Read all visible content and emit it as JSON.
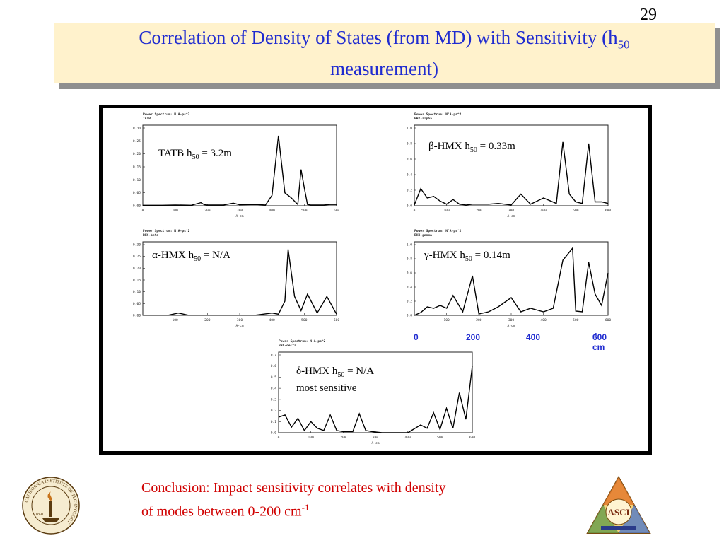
{
  "slide": {
    "page_number": "29",
    "title_line1_pre": "Correlation of Density of States (from MD) with Sensitivity (h",
    "title_line1_sub": "50",
    "title_line2": "measurement)"
  },
  "plots": [
    {
      "header1": "Power Spectrum: N'A-ps^2",
      "header2": "TATB",
      "ylabels": [
        "0.30",
        "0.25",
        "0.20",
        "0.15",
        "0.10",
        "0.05",
        "0.00"
      ],
      "xlabels": [
        "0",
        "100",
        "200",
        "300",
        "400",
        "500",
        "600"
      ],
      "xaxis": "A-cm"
    },
    {
      "header1": "Power Spectrum: N'A-ps^2",
      "header2": "BHX-alpha",
      "ylabels": [
        "1.0",
        "0.8",
        "0.6",
        "0.4",
        "0.2",
        "0.0"
      ],
      "xlabels": [
        "0",
        "100",
        "200",
        "300",
        "400",
        "500",
        "600"
      ],
      "xaxis": "A-cm"
    },
    {
      "header1": "Power Spectrum: N'A-ps^2",
      "header2": "BHX-beta",
      "ylabels": [
        "0.30",
        "0.25",
        "0.20",
        "0.15",
        "0.10",
        "0.05",
        "0.00"
      ],
      "xlabels": [
        "100",
        "200",
        "300",
        "400",
        "500",
        "600"
      ],
      "xaxis": "A-cm"
    },
    {
      "header1": "Power Spectrum: N'A-ps^2",
      "header2": "BHX-gamma",
      "ylabels": [
        "1.0",
        "0.8",
        "0.6",
        "0.4",
        "0.2",
        "0.0"
      ],
      "xlabels": [
        "100",
        "200",
        "300",
        "400",
        "500",
        "600"
      ],
      "xaxis": "A-cm"
    },
    {
      "header1": "Power Spectrum: N'A-ps^2",
      "header2": "BHX-delta",
      "ylabels": [
        "0.7",
        "0.6",
        "0.5",
        "0.4",
        "0.3",
        "0.2",
        "0.1",
        "0.0"
      ],
      "xlabels": [
        "0",
        "100",
        "200",
        "300",
        "400",
        "500",
        "600"
      ],
      "xaxis": "A-cm"
    }
  ],
  "annotations": {
    "tatb": {
      "pre": "TATB h",
      "sub": "50",
      "post": " = 3.2m"
    },
    "beta": {
      "pre": "β-HMX h",
      "sub": "50",
      "post": " = 0.33m"
    },
    "alpha": {
      "pre": "α-HMX h",
      "sub": "50",
      "post": " = N/A"
    },
    "gamma": {
      "pre": "γ-HMX h",
      "sub": "50",
      "post": " = 0.14m"
    },
    "delta": {
      "pre": "δ-HMX h",
      "sub": "50",
      "post": " = N/A",
      "line2": "most sensitive"
    }
  },
  "shared_axis": {
    "ticks": [
      "0",
      "200",
      "400"
    ],
    "last_tick": "600 cm",
    "last_tick_sup": "-1",
    "color": "#1f2bd0"
  },
  "conclusion": {
    "line1": "Conclusion: Impact sensitivity correlates with density",
    "line2_pre": "of modes between 0-200 cm",
    "line2_sup": "-1",
    "color": "#d00000"
  },
  "logos": {
    "left_icon": "caltech-seal-icon",
    "left_text": "CALIFORNIA INSTITUTE OF TECHNOLOGY",
    "left_year": "1891",
    "right_icon": "asci-triangle-logo-icon",
    "right_text": "ASCI"
  },
  "colors": {
    "title_text": "#1f2bd0",
    "title_bg": "#fff2cc",
    "shadow": "#8f8f8f"
  },
  "chart_data": [
    {
      "type": "line",
      "name": "TATB",
      "xlim": [
        0,
        600
      ],
      "ylim": [
        0,
        0.3
      ],
      "x": [
        0,
        30,
        60,
        100,
        150,
        180,
        190,
        200,
        250,
        280,
        300,
        350,
        380,
        400,
        420,
        440,
        450,
        460,
        480,
        490,
        500,
        510,
        520,
        540,
        560,
        580,
        600
      ],
      "y": [
        0.002,
        0.002,
        0.002,
        0.003,
        0.002,
        0.012,
        0.004,
        0.003,
        0.003,
        0.01,
        0.004,
        0.005,
        0.003,
        0.04,
        0.27,
        0.05,
        0.04,
        0.03,
        0.005,
        0.14,
        0.07,
        0.005,
        0.003,
        0.003,
        0.003,
        0.005,
        0.005
      ]
    },
    {
      "type": "line",
      "name": "beta-HMX",
      "xlim": [
        0,
        600
      ],
      "ylim": [
        0,
        1.0
      ],
      "x": [
        0,
        20,
        40,
        60,
        80,
        100,
        120,
        140,
        160,
        180,
        200,
        230,
        260,
        300,
        330,
        360,
        400,
        440,
        460,
        480,
        500,
        520,
        540,
        560,
        580,
        600
      ],
      "y": [
        0.01,
        0.22,
        0.1,
        0.12,
        0.06,
        0.02,
        0.08,
        0.02,
        0.01,
        0.02,
        0.02,
        0.02,
        0.03,
        0.01,
        0.15,
        0.02,
        0.1,
        0.03,
        0.82,
        0.15,
        0.05,
        0.03,
        0.8,
        0.05,
        0.05,
        0.03
      ]
    },
    {
      "type": "line",
      "name": "alpha-HMX",
      "xlim": [
        0,
        600
      ],
      "ylim": [
        0,
        0.3
      ],
      "x": [
        0,
        40,
        80,
        110,
        140,
        170,
        200,
        250,
        300,
        350,
        400,
        420,
        440,
        450,
        470,
        490,
        510,
        540,
        570,
        600
      ],
      "y": [
        0.001,
        0.001,
        0.001,
        0.01,
        0.001,
        0.001,
        0.001,
        0.001,
        0.001,
        0.001,
        0.01,
        0.005,
        0.06,
        0.28,
        0.08,
        0.02,
        0.09,
        0.01,
        0.08,
        0.005
      ]
    },
    {
      "type": "line",
      "name": "gamma-HMX",
      "xlim": [
        0,
        600
      ],
      "ylim": [
        0,
        1.0
      ],
      "x": [
        0,
        20,
        40,
        60,
        80,
        100,
        120,
        150,
        180,
        200,
        230,
        260,
        300,
        330,
        360,
        400,
        430,
        460,
        490,
        500,
        520,
        540,
        560,
        580,
        600
      ],
      "y": [
        0.0,
        0.04,
        0.12,
        0.1,
        0.14,
        0.1,
        0.28,
        0.05,
        0.56,
        0.02,
        0.05,
        0.12,
        0.25,
        0.05,
        0.1,
        0.05,
        0.1,
        0.78,
        0.95,
        0.06,
        0.05,
        0.75,
        0.3,
        0.14,
        0.6
      ]
    },
    {
      "type": "line",
      "name": "delta-HMX",
      "xlim": [
        0,
        600
      ],
      "ylim": [
        0,
        0.7
      ],
      "x": [
        0,
        20,
        40,
        60,
        80,
        100,
        120,
        140,
        160,
        180,
        200,
        230,
        250,
        270,
        290,
        320,
        360,
        400,
        440,
        460,
        480,
        500,
        520,
        540,
        560,
        580,
        600
      ],
      "y": [
        0.14,
        0.16,
        0.05,
        0.13,
        0.02,
        0.1,
        0.04,
        0.02,
        0.16,
        0.02,
        0.01,
        0.01,
        0.17,
        0.02,
        0.01,
        0.0,
        0.0,
        0.0,
        0.07,
        0.04,
        0.18,
        0.03,
        0.22,
        0.04,
        0.36,
        0.12,
        0.6
      ]
    }
  ]
}
